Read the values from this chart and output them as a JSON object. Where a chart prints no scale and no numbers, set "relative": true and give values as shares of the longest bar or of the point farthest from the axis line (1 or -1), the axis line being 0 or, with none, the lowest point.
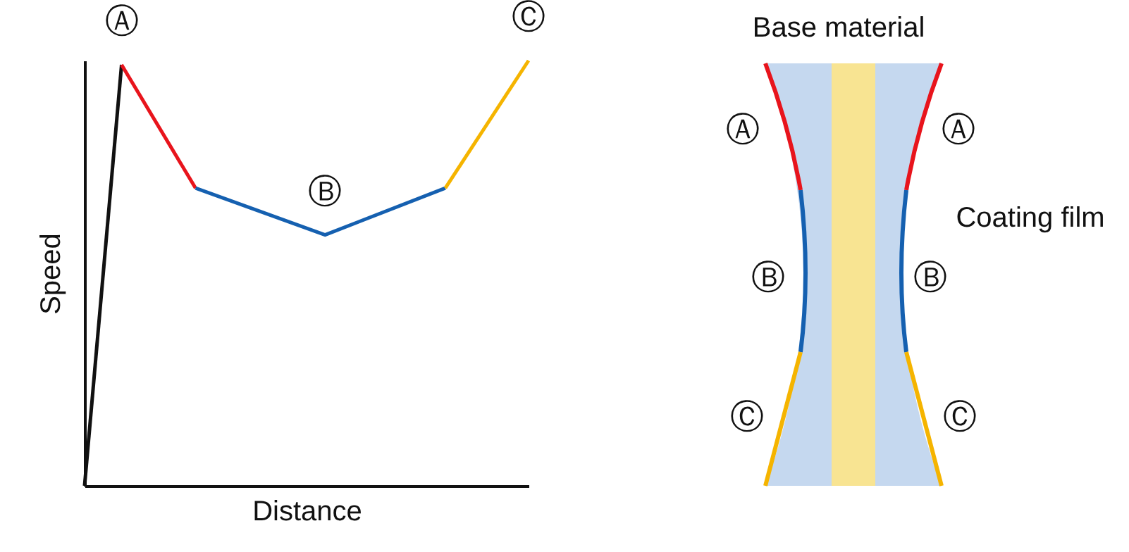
{
  "chart_data": [
    {
      "type": "line",
      "relative": true,
      "xlabel": "Distance",
      "ylabel": "Speed",
      "categories": [
        null,
        null,
        null,
        null,
        null,
        null,
        null,
        null,
        null,
        null,
        null,
        null,
        null,
        null,
        null,
        null,
        null,
        null,
        null,
        null,
        null,
        null,
        null,
        null,
        null,
        null,
        null,
        null,
        null,
        null,
        null,
        null,
        null,
        null,
        null,
        null,
        null,
        null,
        null,
        null,
        null,
        null,
        null,
        null,
        null,
        null,
        null,
        null,
        null
      ],
      "series": [
        {
          "color": "#111111",
          "values": [
            0,
            null,
            null,
            null,
            0.99,
            null,
            null,
            null,
            null,
            null,
            null,
            null,
            null,
            null,
            null,
            null,
            null,
            null,
            null,
            null,
            null,
            null,
            null,
            null,
            null,
            null,
            null,
            null,
            null,
            null,
            null,
            null,
            null,
            null,
            null,
            null,
            null,
            null,
            null,
            null,
            null,
            null,
            null,
            null,
            null,
            null,
            null,
            null,
            null
          ]
        },
        {
          "color": "#e8141c",
          "values": [
            null,
            null,
            null,
            null,
            0.99,
            null,
            null,
            null,
            null,
            null,
            null,
            null,
            0.7,
            null,
            null,
            null,
            null,
            null,
            null,
            null,
            null,
            null,
            null,
            null,
            null,
            null,
            null,
            null,
            null,
            null,
            null,
            null,
            null,
            null,
            null,
            null,
            null,
            null,
            null,
            null,
            null,
            null,
            null,
            null,
            null,
            null,
            null,
            null,
            null
          ]
        },
        {
          "color": "#1560b0",
          "values": [
            null,
            null,
            null,
            null,
            null,
            null,
            null,
            null,
            null,
            null,
            null,
            null,
            0.7,
            null,
            null,
            null,
            null,
            null,
            null,
            null,
            null,
            null,
            null,
            null,
            null,
            null,
            0.59,
            null,
            null,
            null,
            null,
            null,
            null,
            null,
            null,
            null,
            null,
            null,
            null,
            0.7,
            null,
            null,
            null,
            null,
            null,
            null,
            null,
            null,
            null
          ]
        },
        {
          "color": "#f5b400",
          "values": [
            null,
            null,
            null,
            null,
            null,
            null,
            null,
            null,
            null,
            null,
            null,
            null,
            null,
            null,
            null,
            null,
            null,
            null,
            null,
            null,
            null,
            null,
            null,
            null,
            null,
            null,
            null,
            null,
            null,
            null,
            null,
            null,
            null,
            null,
            null,
            null,
            null,
            null,
            null,
            0.7,
            null,
            null,
            null,
            null,
            null,
            null,
            null,
            null,
            1
          ]
        }
      ],
      "annotations": [
        "Ⓐ",
        "Ⓑ",
        "Ⓒ"
      ]
    },
    {
      "type": "other",
      "annotations": [
        "Base material",
        "Coating film",
        "Ⓐ",
        "Ⓐ",
        "Ⓑ",
        "Ⓑ",
        "Ⓒ",
        "Ⓒ"
      ]
    }
  ]
}
